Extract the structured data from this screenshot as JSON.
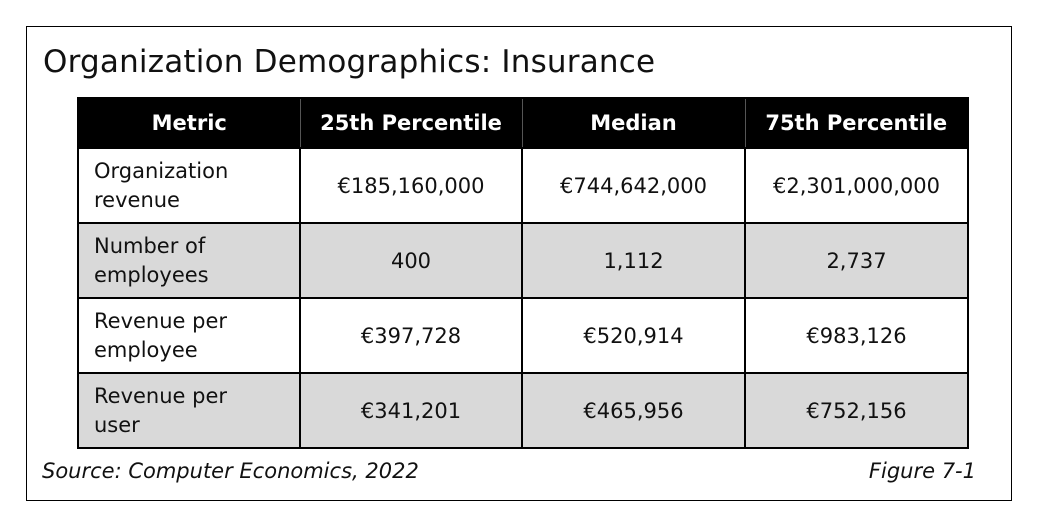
{
  "title": "Organization Demographics: Insurance",
  "table": {
    "headers": [
      "Metric",
      "25th Percentile",
      "Median",
      "75th Percentile"
    ],
    "rows": [
      {
        "metric_line1": "Organization",
        "metric_line2": "revenue",
        "p25": "€185,160,000",
        "median": "€744,642,000",
        "p75": "€2,301,000,000"
      },
      {
        "metric_line1": "Number of",
        "metric_line2": "employees",
        "p25": "400",
        "median": "1,112",
        "p75": "2,737"
      },
      {
        "metric_line1": "Revenue per",
        "metric_line2": "employee",
        "p25": "€397,728",
        "median": "€520,914",
        "p75": "€983,126"
      },
      {
        "metric_line1": "Revenue per",
        "metric_line2": "user",
        "p25": "€341,201",
        "median": "€465,956",
        "p75": "€752,156"
      }
    ]
  },
  "source": "Source: Computer Economics, 2022",
  "figure_label": "Figure 7-1",
  "colors": {
    "header_background": "#000000",
    "header_text": "#ffffff",
    "shaded_row": "#d9d9d9"
  }
}
